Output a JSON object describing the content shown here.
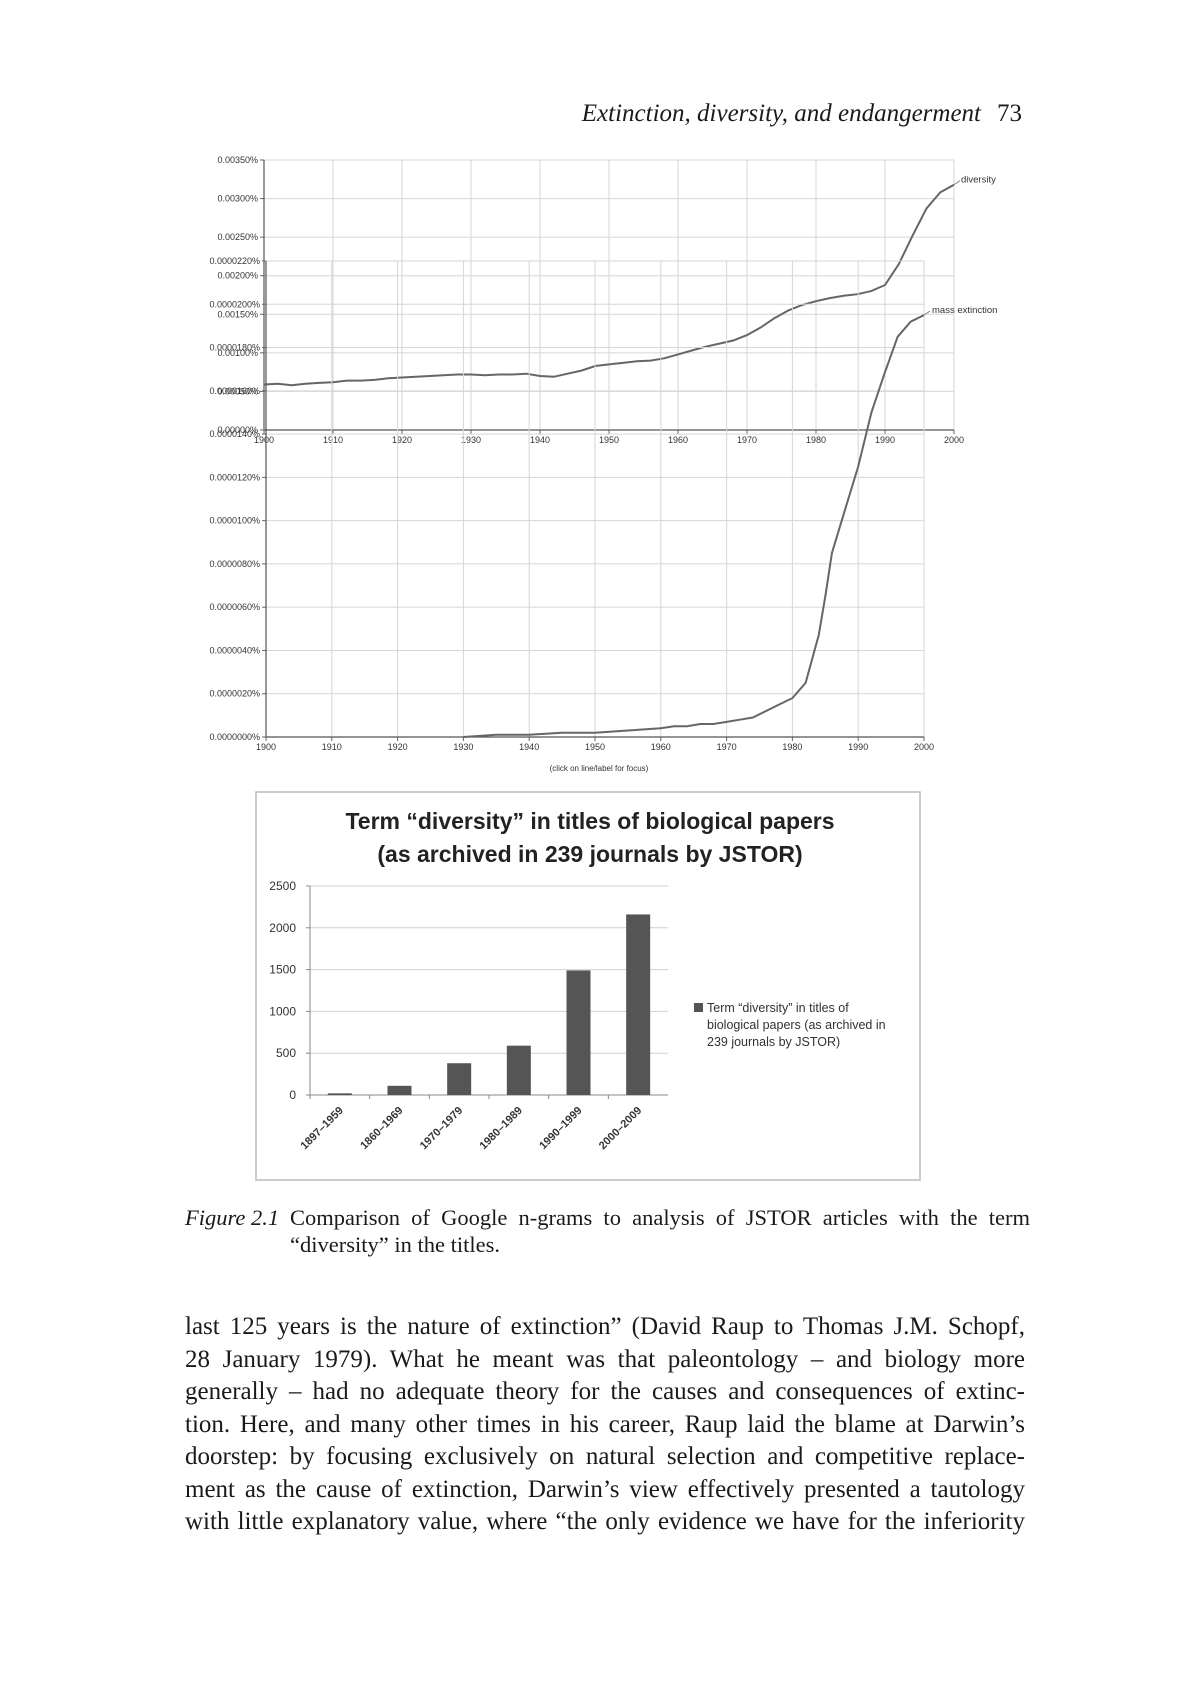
{
  "running_head": {
    "title": "Extinction, diversity, and endangerment",
    "page_number": "73"
  },
  "chart_data": [
    {
      "type": "line",
      "series": [
        {
          "name": "diversity",
          "x": [
            1900,
            1902,
            1904,
            1906,
            1908,
            1910,
            1912,
            1914,
            1916,
            1918,
            1920,
            1922,
            1924,
            1926,
            1928,
            1930,
            1932,
            1934,
            1936,
            1938,
            1940,
            1942,
            1944,
            1946,
            1948,
            1950,
            1952,
            1954,
            1956,
            1958,
            1960,
            1962,
            1964,
            1966,
            1968,
            1970,
            1972,
            1974,
            1976,
            1978,
            1980,
            1982,
            1984,
            1986,
            1988,
            1990,
            1992,
            1994,
            1996,
            1998,
            2000
          ],
          "y": [
            0.00059,
            0.0006,
            0.00058,
            0.0006,
            0.00061,
            0.00062,
            0.00064,
            0.00064,
            0.00065,
            0.00067,
            0.00068,
            0.00069,
            0.0007,
            0.00071,
            0.00072,
            0.00072,
            0.00071,
            0.00072,
            0.00072,
            0.00073,
            0.0007,
            0.00069,
            0.00073,
            0.00077,
            0.00083,
            0.00085,
            0.00087,
            0.00089,
            0.0009,
            0.00093,
            0.00098,
            0.00103,
            0.00108,
            0.00112,
            0.00116,
            0.00123,
            0.00133,
            0.00145,
            0.00155,
            0.00162,
            0.00167,
            0.00171,
            0.00174,
            0.00176,
            0.0018,
            0.00188,
            0.00215,
            0.00252,
            0.00287,
            0.00308,
            0.00318
          ]
        }
      ],
      "xlim": [
        1900,
        2000
      ],
      "ylim": [
        0,
        0.0035
      ],
      "y_ticks": [
        "0.00000%",
        "0.00050%",
        "0.00100%",
        "0.00150%",
        "0.00200%",
        "0.00250%",
        "0.00300%",
        "0.00350%"
      ],
      "x_ticks": [
        "1900",
        "1910",
        "1920",
        "1930",
        "1940",
        "1950",
        "1960",
        "1970",
        "1980",
        "1990",
        "2000"
      ],
      "grid": true,
      "legend": "inline label at line end"
    },
    {
      "type": "line",
      "series": [
        {
          "name": "mass extinction",
          "x": [
            1930,
            1935,
            1940,
            1945,
            1950,
            1955,
            1960,
            1962,
            1964,
            1966,
            1968,
            1970,
            1972,
            1974,
            1976,
            1978,
            1980,
            1982,
            1984,
            1985,
            1986,
            1988,
            1990,
            1992,
            1994,
            1996,
            1998,
            2000
          ],
          "y": [
            0.0,
            1e-07,
            1e-07,
            2e-07,
            2e-07,
            3e-07,
            4e-07,
            5e-07,
            5e-07,
            6e-07,
            6e-07,
            7e-07,
            8e-07,
            9e-07,
            1.2e-06,
            1.5e-06,
            1.8e-06,
            2.5e-06,
            4.7e-06,
            6.5e-06,
            8.5e-06,
            1.05e-05,
            1.25e-05,
            1.5e-05,
            1.68e-05,
            1.85e-05,
            1.92e-05,
            1.95e-05
          ]
        }
      ],
      "xlim": [
        1900,
        2000
      ],
      "ylim": [
        0,
        2.2e-05
      ],
      "y_ticks": [
        "0.0000000%",
        "0.0000020%",
        "0.0000040%",
        "0.0000060%",
        "0.0000080%",
        "0.0000100%",
        "0.0000120%",
        "0.0000140%",
        "0.0000160%",
        "0.0000180%",
        "0.0000200%",
        "0.0000220%"
      ],
      "x_ticks": [
        "1900",
        "1910",
        "1920",
        "1930",
        "1940",
        "1950",
        "1960",
        "1970",
        "1980",
        "1990",
        "2000"
      ],
      "note": "(click on line/label for focus)",
      "grid": true,
      "legend": "inline label at line end"
    },
    {
      "type": "bar",
      "title_line1": "Term “diversity” in titles of biological papers",
      "title_line2": "(as archived in 239 journals by JSTOR)",
      "categories": [
        "1897–1959",
        "1860–1969",
        "1970–1979",
        "1980–1989",
        "1990–1999",
        "2000–2009"
      ],
      "values": [
        20,
        110,
        380,
        590,
        1490,
        2160
      ],
      "ylim": [
        0,
        2500
      ],
      "y_ticks": [
        "0",
        "500",
        "1000",
        "1500",
        "2000",
        "2500"
      ],
      "legend_line1": "Term “diversity” in titles of",
      "legend_line2": "biological papers (as archived in",
      "legend_line3": "239 journals by JSTOR)",
      "legend_position": "right",
      "color": "#555555"
    }
  ],
  "caption": {
    "label": "Figure 2.1",
    "text": "Comparison of Google n-grams to analysis of JSTOR articles with the term “diversity” in the titles."
  },
  "body_lines": [
    "last 125 years is the nature of extinction” (David Raup to Thomas J.M. Schopf,",
    "28 January 1979). What he meant was that paleontology – and biology more",
    "generally – had no adequate theory for the causes and consequences of extinc-",
    "tion. Here, and many other times in his career, Raup laid the blame at Darwin’s",
    "doorstep: by focusing exclusively on natural selection and competitive replace-",
    "ment as the cause of extinction, Darwin’s view effectively presented a tautology",
    "with little explanatory value, where “the only evidence we have for the inferiority"
  ]
}
